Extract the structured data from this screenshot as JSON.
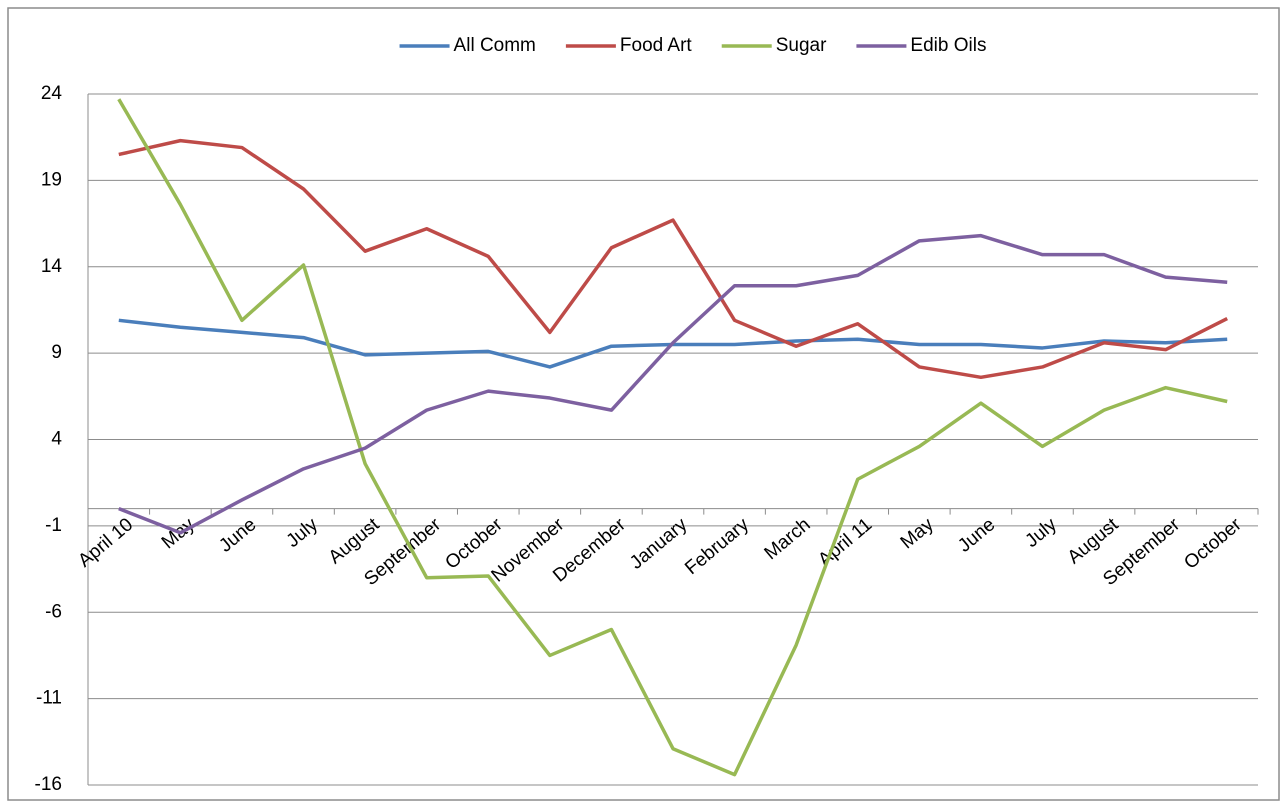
{
  "chart_data": {
    "type": "line",
    "categories": [
      "April 10",
      "May",
      "June",
      "July",
      "August",
      "September",
      "October",
      "November",
      "December",
      "January",
      "February",
      "March",
      "April 11",
      "May",
      "June",
      "July",
      "August",
      "September",
      "October"
    ],
    "series": [
      {
        "name": "All Comm",
        "color": "#4a7ebb",
        "values": [
          10.9,
          10.5,
          10.2,
          9.9,
          8.9,
          9.0,
          9.1,
          8.2,
          9.4,
          9.5,
          9.5,
          9.7,
          9.8,
          9.5,
          9.5,
          9.3,
          9.7,
          9.6,
          9.8
        ]
      },
      {
        "name": "Food Art",
        "color": "#be4b48",
        "values": [
          20.5,
          21.3,
          20.9,
          18.5,
          14.9,
          16.2,
          14.6,
          10.2,
          15.1,
          16.7,
          10.9,
          9.4,
          10.7,
          8.2,
          7.6,
          8.2,
          9.6,
          9.2,
          11.0
        ]
      },
      {
        "name": "Sugar",
        "color": "#98b954",
        "values": [
          23.7,
          17.6,
          10.9,
          14.1,
          2.6,
          -4.0,
          -3.9,
          -8.5,
          -7.0,
          -13.9,
          -15.4,
          -7.9,
          1.7,
          3.6,
          6.1,
          3.6,
          5.7,
          7.0,
          6.2
        ]
      },
      {
        "name": "Edib Oils",
        "color": "#7d60a0",
        "values": [
          0.0,
          -1.4,
          0.5,
          2.3,
          3.5,
          5.7,
          6.8,
          6.4,
          5.7,
          9.6,
          12.9,
          12.9,
          13.5,
          15.5,
          15.8,
          14.7,
          14.7,
          13.4,
          13.1
        ]
      }
    ],
    "ylim": [
      -16,
      24
    ],
    "yticks": [
      -16,
      -11,
      -6,
      -1,
      4,
      9,
      14,
      19,
      24
    ],
    "grid": true,
    "legend": "top"
  }
}
